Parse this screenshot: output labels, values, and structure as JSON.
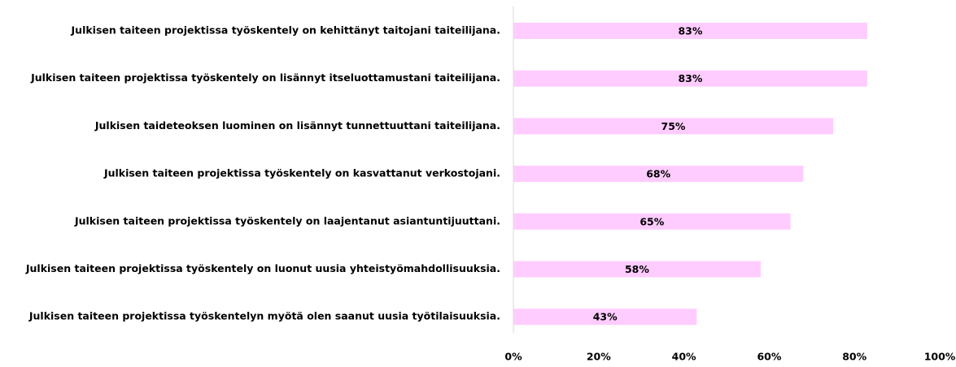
{
  "chart_data": {
    "type": "hbar",
    "categories": [
      "Julkisen taiteen projektissa työskentely on kehittänyt taitojani taiteilijana.",
      "Julkisen taiteen projektissa työskentely on lisännyt itseluottamustani taiteilijana.",
      "Julkisen taideteoksen luominen on lisännyt tunnettuuttani taiteilijana.",
      "Julkisen taiteen projektissa työskentely on kasvattanut verkostojani.",
      "Julkisen taiteen projektissa työskentely on laajentanut asiantuntijuuttani.",
      "Julkisen taiteen projektissa työskentely on luonut uusia yhteistyömahdollisuuksia.",
      "Julkisen taiteen projektissa työskentelyn myötä olen saanut uusia työtilaisuuksia."
    ],
    "values": [
      83,
      83,
      75,
      68,
      65,
      58,
      43
    ],
    "value_labels": [
      "83%",
      "83%",
      "75%",
      "68%",
      "65%",
      "58%",
      "43%"
    ],
    "color": "#ffccff",
    "xlim": [
      0,
      100
    ],
    "xticks": [
      {
        "value": 0,
        "label": "0%"
      },
      {
        "value": 20,
        "label": "20%"
      },
      {
        "value": 40,
        "label": "40%"
      },
      {
        "value": 60,
        "label": "60%"
      },
      {
        "value": 80,
        "label": "80%"
      },
      {
        "value": 100,
        "label": "100%"
      }
    ]
  }
}
